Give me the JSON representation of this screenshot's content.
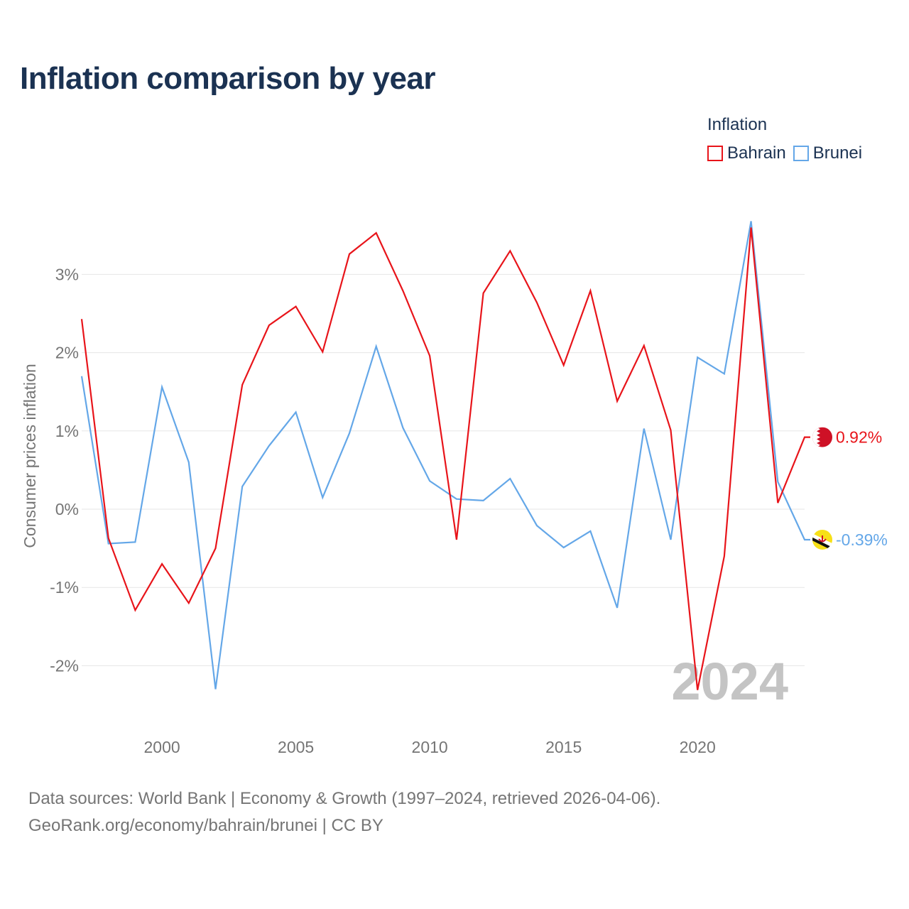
{
  "page": {
    "title": "Inflation comparison by year",
    "legend_title": "Inflation",
    "source_line": "Data sources: World Bank | Economy & Growth (1997–2024, retrieved 2026-04-06).",
    "credit_line": "GeoRank.org/economy/bahrain/brunei | CC BY"
  },
  "chart_data": {
    "type": "line",
    "title": "Inflation comparison by year",
    "xlabel": "",
    "ylabel": "Consumer prices inflation",
    "x": [
      1997,
      1998,
      1999,
      2000,
      2001,
      2002,
      2003,
      2004,
      2005,
      2006,
      2007,
      2008,
      2009,
      2010,
      2011,
      2012,
      2013,
      2014,
      2015,
      2016,
      2017,
      2018,
      2019,
      2020,
      2021,
      2022,
      2023,
      2024
    ],
    "xlim": [
      1997,
      2024
    ],
    "ylim": [
      -2.7,
      3.6
    ],
    "x_ticks": [
      2000,
      2005,
      2010,
      2015,
      2020
    ],
    "x_tick_labels": [
      "2000",
      "2005",
      "2010",
      "2015",
      "2020"
    ],
    "y_ticks": [
      -2,
      -1,
      0,
      1,
      2,
      3
    ],
    "y_tick_labels": [
      "-2%",
      "-1%",
      "0%",
      "1%",
      "2%",
      "3%"
    ],
    "year_watermark": "2024",
    "grid": true,
    "legend_position": "top-right",
    "series": [
      {
        "name": "Bahrain",
        "color": "#e8141a",
        "end_label": "0.92%",
        "flag_icon": "bahrain-flag-icon",
        "values": [
          2.43,
          -0.37,
          -1.29,
          -0.7,
          -1.2,
          -0.5,
          1.59,
          2.35,
          2.59,
          2.01,
          3.26,
          3.53,
          2.79,
          1.96,
          -0.39,
          2.76,
          3.3,
          2.64,
          1.84,
          2.79,
          1.38,
          2.09,
          1.01,
          -2.31,
          -0.6,
          3.6,
          0.08,
          0.92
        ]
      },
      {
        "name": "Brunei",
        "color": "#64a7e8",
        "end_label": "-0.39%",
        "flag_icon": "brunei-flag-icon",
        "values": [
          1.7,
          -0.44,
          -0.42,
          1.56,
          0.6,
          -2.3,
          0.29,
          0.81,
          1.24,
          0.15,
          0.97,
          2.08,
          1.04,
          0.36,
          0.13,
          0.11,
          0.39,
          -0.21,
          -0.49,
          -0.28,
          -1.26,
          1.03,
          -0.39,
          1.94,
          1.73,
          3.68,
          0.35,
          -0.39
        ]
      }
    ]
  }
}
